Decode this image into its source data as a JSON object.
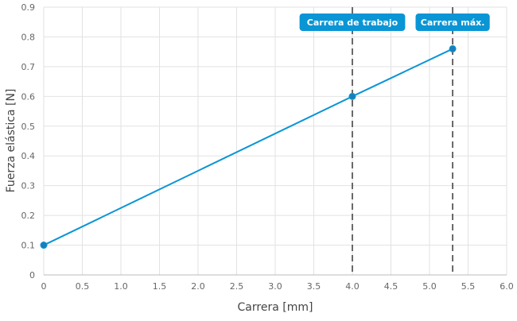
{
  "chart_data": {
    "type": "line",
    "title": "",
    "xlabel": "Carrera [mm]",
    "ylabel": "Fuerza elástica [N]",
    "xlim": [
      0,
      6.0
    ],
    "ylim": [
      0,
      0.9
    ],
    "grid": true,
    "x_ticks": [
      "0",
      "0.5",
      "1.0",
      "1.5",
      "2.0",
      "2.5",
      "3.0",
      "3.5",
      "4.0",
      "4.5",
      "5.0",
      "5.5",
      "6.0"
    ],
    "y_ticks": [
      "0",
      "0.1",
      "0.2",
      "0.3",
      "0.4",
      "0.5",
      "0.6",
      "0.7",
      "0.8",
      "0.9"
    ],
    "series": [
      {
        "x": [
          0,
          4.0,
          5.3
        ],
        "y": [
          0.1,
          0.6,
          0.76
        ],
        "color": "#0a95d5"
      }
    ],
    "annotations": [
      {
        "x": 4.0,
        "label": "Carrera de trabajo",
        "style": "dashed vertical line"
      },
      {
        "x": 5.3,
        "label": "Carrera máx.",
        "style": "dashed vertical line"
      }
    ],
    "colors": {
      "line": "#0a95d5",
      "label_bg": "#0a95d5",
      "marker_line": "#444444",
      "grid": "#e2e2e2"
    }
  }
}
